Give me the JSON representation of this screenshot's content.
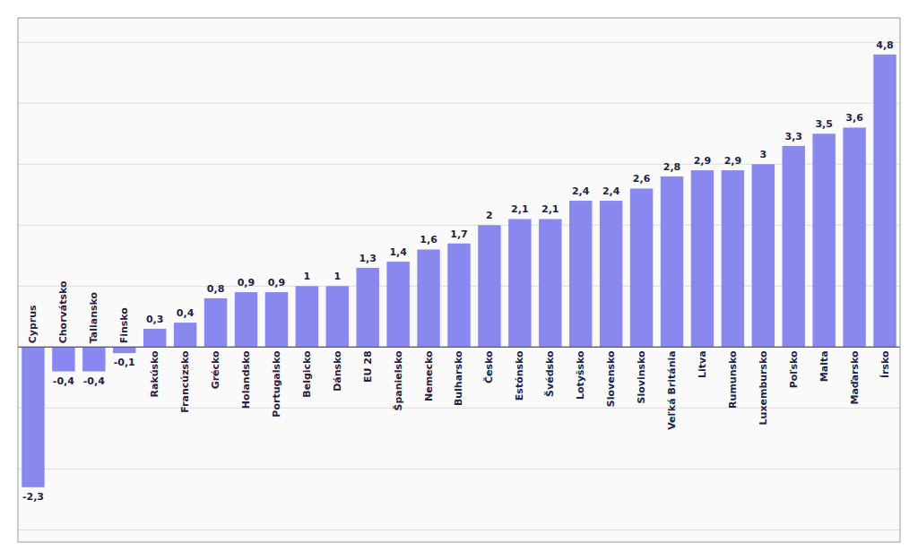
{
  "chart_data": {
    "type": "bar",
    "categories": [
      "Cyprus",
      "Chorvátsko",
      "Taliansko",
      "Finsko",
      "Rakúsko",
      "Francúzsko",
      "Grécko",
      "Holandsko",
      "Portugalsko",
      "Belgicko",
      "Dánsko",
      "EU 28",
      "Španielsko",
      "Nemecko",
      "Bulharsko",
      "Česko",
      "Estónsko",
      "Švédsko",
      "Lotyšsko",
      "Slovensko",
      "Slovinsko",
      "Veľká Británia",
      "Litva",
      "Rumunsko",
      "Luxembursko",
      "Poľsko",
      "Malta",
      "Maďarsko",
      "Írsko"
    ],
    "values": [
      -2.3,
      -0.4,
      -0.4,
      -0.1,
      0.3,
      0.4,
      0.8,
      0.9,
      0.9,
      1.0,
      1.0,
      1.3,
      1.4,
      1.6,
      1.7,
      2.0,
      2.1,
      2.1,
      2.4,
      2.4,
      2.6,
      2.8,
      2.9,
      2.9,
      3.0,
      3.3,
      3.5,
      3.6,
      4.8
    ],
    "value_labels": [
      "-2,3",
      "-0,4",
      "-0,4",
      "-0,1",
      "0,3",
      "0,4",
      "0,8",
      "0,9",
      "0,9",
      "1",
      "1",
      "1,3",
      "1,4",
      "1,6",
      "1,7",
      "2",
      "2,1",
      "2,1",
      "2,4",
      "2,4",
      "2,6",
      "2,8",
      "2,9",
      "2,9",
      "3",
      "3,3",
      "3,5",
      "3,6",
      "4,8"
    ],
    "color": "#8888ee",
    "ylim": [
      -3.2,
      5.4
    ],
    "yticks": [
      -3,
      -2,
      -1,
      0,
      1,
      2,
      3,
      4,
      5
    ],
    "grid": true,
    "data_labels": true,
    "tick_labels": "x"
  }
}
